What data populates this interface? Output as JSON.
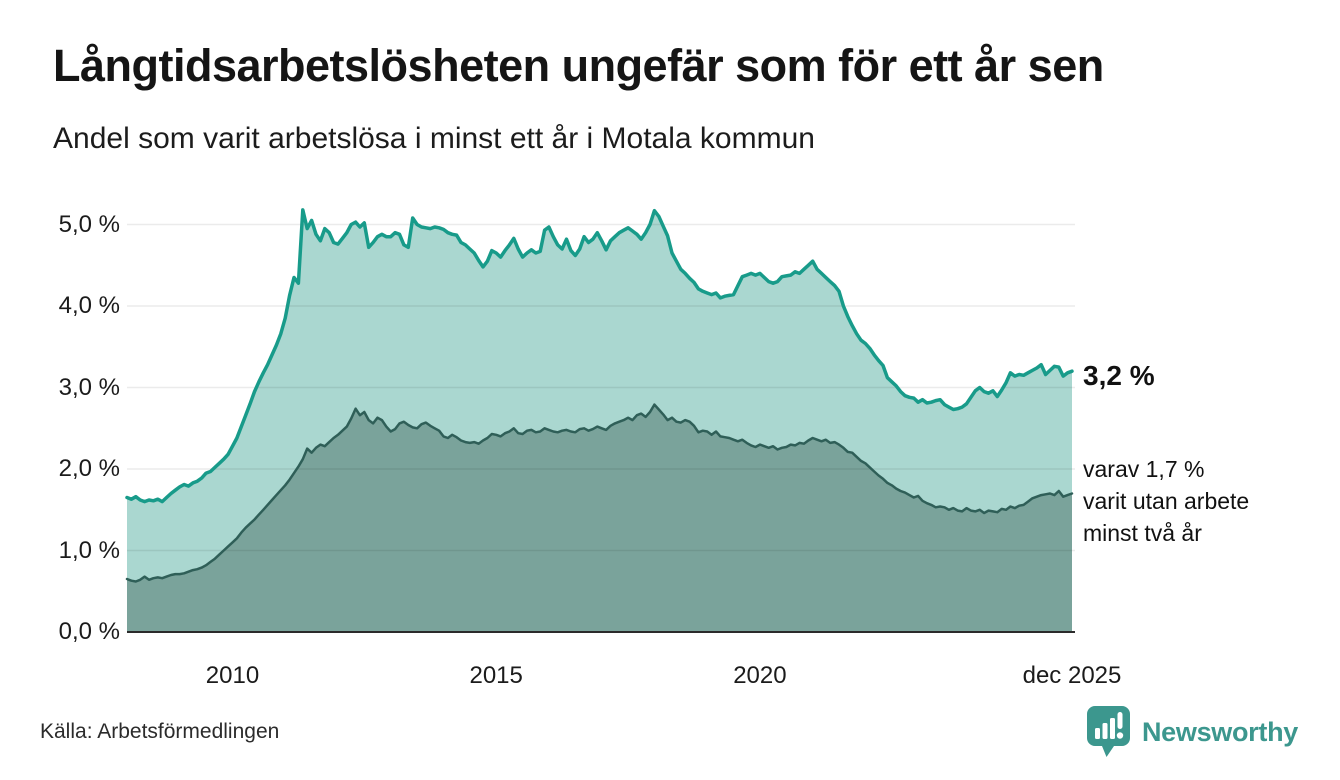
{
  "header": {
    "title": "Långtidsarbetslösheten ungefär som för ett år sen",
    "subtitle": "Andel som varit arbetslösa i minst ett år i Motala kommun"
  },
  "end_labels": {
    "total": "3,2 %",
    "two_year_line1": "varav 1,7 %",
    "two_year_line2": "varit utan arbete",
    "two_year_line3": "minst två år"
  },
  "footer": {
    "source": "Källa: Arbetsförmedlingen",
    "brand": "Newsworthy"
  },
  "colors": {
    "series1_line": "#189b8a",
    "series1_fill": "#aad7d0",
    "series2_line": "#2f5f58",
    "series2_fill": "#7aa39b",
    "gridline": "rgba(0,0,0,0.08)",
    "baseline": "#2b2b2b",
    "brand_teal": "#3c978e"
  },
  "chart_data": {
    "type": "area",
    "title": "Långtidsarbetslösheten ungefär som för ett år sen",
    "subtitle": "Andel som varit arbetslösa i minst ett år i Motala kommun",
    "xlabel": "",
    "ylabel": "",
    "grid": true,
    "legend": "none",
    "xlim": [
      2008,
      2025.917
    ],
    "ylim": [
      0,
      5.35
    ],
    "x_start_year": 2008,
    "points_per_year": 12,
    "y_ticks": [
      {
        "value": 5.0,
        "label": "5,0 %"
      },
      {
        "value": 4.0,
        "label": "4,0 %"
      },
      {
        "value": 3.0,
        "label": "3,0 %"
      },
      {
        "value": 2.0,
        "label": "2,0 %"
      },
      {
        "value": 1.0,
        "label": "1,0 %"
      },
      {
        "value": 0.0,
        "label": "0,0 %"
      }
    ],
    "x_ticks": [
      {
        "value": 2010,
        "label": "2010"
      },
      {
        "value": 2015,
        "label": "2015"
      },
      {
        "value": 2020,
        "label": "2020"
      },
      {
        "value": 2025.917,
        "label": "dec 2025"
      }
    ],
    "series": [
      {
        "name": "Andel som varit arbetslösa minst ett år",
        "end_value_label": "3,2 %",
        "values": [
          1.65,
          1.63,
          1.66,
          1.62,
          1.6,
          1.62,
          1.61,
          1.63,
          1.6,
          1.65,
          1.7,
          1.74,
          1.78,
          1.81,
          1.79,
          1.83,
          1.85,
          1.89,
          1.95,
          1.97,
          2.02,
          2.07,
          2.12,
          2.18,
          2.28,
          2.38,
          2.52,
          2.66,
          2.8,
          2.95,
          3.07,
          3.18,
          3.28,
          3.4,
          3.52,
          3.66,
          3.85,
          4.13,
          4.35,
          4.28,
          5.18,
          4.95,
          5.05,
          4.88,
          4.8,
          4.95,
          4.9,
          4.78,
          4.76,
          4.83,
          4.9,
          5.0,
          5.03,
          4.97,
          5.02,
          4.72,
          4.78,
          4.85,
          4.88,
          4.85,
          4.85,
          4.9,
          4.88,
          4.75,
          4.72,
          5.08,
          5.0,
          4.97,
          4.96,
          4.95,
          4.97,
          4.96,
          4.94,
          4.9,
          4.88,
          4.87,
          4.78,
          4.75,
          4.7,
          4.65,
          4.56,
          4.48,
          4.55,
          4.68,
          4.65,
          4.6,
          4.68,
          4.75,
          4.83,
          4.7,
          4.6,
          4.65,
          4.69,
          4.65,
          4.67,
          4.93,
          4.97,
          4.85,
          4.75,
          4.7,
          4.82,
          4.68,
          4.62,
          4.7,
          4.85,
          4.78,
          4.82,
          4.9,
          4.8,
          4.69,
          4.8,
          4.85,
          4.9,
          4.93,
          4.96,
          4.92,
          4.88,
          4.82,
          4.9,
          5.0,
          5.17,
          5.1,
          4.98,
          4.86,
          4.65,
          4.55,
          4.45,
          4.4,
          4.34,
          4.29,
          4.21,
          4.18,
          4.16,
          4.14,
          4.16,
          4.1,
          4.12,
          4.13,
          4.14,
          4.25,
          4.36,
          4.38,
          4.4,
          4.38,
          4.4,
          4.35,
          4.3,
          4.28,
          4.3,
          4.36,
          4.37,
          4.38,
          4.42,
          4.4,
          4.45,
          4.5,
          4.55,
          4.45,
          4.4,
          4.35,
          4.3,
          4.25,
          4.18,
          4.0,
          3.87,
          3.76,
          3.66,
          3.58,
          3.54,
          3.48,
          3.4,
          3.33,
          3.27,
          3.12,
          3.07,
          3.02,
          2.95,
          2.9,
          2.88,
          2.87,
          2.82,
          2.85,
          2.81,
          2.82,
          2.84,
          2.85,
          2.79,
          2.76,
          2.73,
          2.74,
          2.76,
          2.8,
          2.88,
          2.96,
          3.0,
          2.95,
          2.93,
          2.96,
          2.89,
          2.97,
          3.06,
          3.18,
          3.14,
          3.16,
          3.15,
          3.18,
          3.21,
          3.24,
          3.28,
          3.16,
          3.21,
          3.26,
          3.25,
          3.14,
          3.18,
          3.2
        ]
      },
      {
        "name": "varav utan arbete minst två år",
        "end_value_label": "1,7 %",
        "values": [
          0.65,
          0.63,
          0.62,
          0.64,
          0.68,
          0.64,
          0.66,
          0.67,
          0.66,
          0.68,
          0.7,
          0.71,
          0.71,
          0.72,
          0.74,
          0.76,
          0.77,
          0.79,
          0.82,
          0.86,
          0.9,
          0.95,
          1.0,
          1.05,
          1.1,
          1.15,
          1.22,
          1.28,
          1.33,
          1.38,
          1.44,
          1.5,
          1.56,
          1.62,
          1.68,
          1.74,
          1.8,
          1.87,
          1.95,
          2.03,
          2.12,
          2.25,
          2.2,
          2.26,
          2.3,
          2.28,
          2.33,
          2.38,
          2.42,
          2.47,
          2.52,
          2.62,
          2.74,
          2.66,
          2.7,
          2.6,
          2.56,
          2.63,
          2.6,
          2.52,
          2.46,
          2.49,
          2.56,
          2.58,
          2.54,
          2.51,
          2.5,
          2.55,
          2.57,
          2.53,
          2.5,
          2.47,
          2.4,
          2.38,
          2.42,
          2.39,
          2.35,
          2.33,
          2.32,
          2.33,
          2.31,
          2.35,
          2.38,
          2.43,
          2.42,
          2.4,
          2.44,
          2.46,
          2.5,
          2.44,
          2.43,
          2.47,
          2.48,
          2.45,
          2.46,
          2.5,
          2.48,
          2.46,
          2.45,
          2.47,
          2.48,
          2.46,
          2.45,
          2.49,
          2.5,
          2.47,
          2.49,
          2.52,
          2.5,
          2.48,
          2.53,
          2.56,
          2.58,
          2.6,
          2.63,
          2.6,
          2.66,
          2.68,
          2.64,
          2.7,
          2.79,
          2.73,
          2.67,
          2.6,
          2.63,
          2.58,
          2.57,
          2.6,
          2.58,
          2.53,
          2.45,
          2.47,
          2.46,
          2.42,
          2.46,
          2.4,
          2.39,
          2.38,
          2.36,
          2.34,
          2.36,
          2.32,
          2.29,
          2.27,
          2.3,
          2.28,
          2.26,
          2.28,
          2.24,
          2.26,
          2.27,
          2.3,
          2.29,
          2.32,
          2.31,
          2.35,
          2.38,
          2.36,
          2.34,
          2.36,
          2.32,
          2.33,
          2.3,
          2.26,
          2.21,
          2.2,
          2.15,
          2.1,
          2.07,
          2.02,
          1.97,
          1.92,
          1.88,
          1.83,
          1.8,
          1.76,
          1.73,
          1.71,
          1.68,
          1.65,
          1.67,
          1.61,
          1.58,
          1.56,
          1.53,
          1.54,
          1.53,
          1.5,
          1.52,
          1.49,
          1.48,
          1.52,
          1.49,
          1.48,
          1.5,
          1.46,
          1.49,
          1.48,
          1.47,
          1.51,
          1.5,
          1.54,
          1.52,
          1.55,
          1.56,
          1.6,
          1.64,
          1.66,
          1.68,
          1.69,
          1.7,
          1.68,
          1.73,
          1.66,
          1.68,
          1.7
        ]
      }
    ],
    "annotations": [
      {
        "text": "3,2 %",
        "bold": true,
        "attached_to": "series 1 end"
      },
      {
        "text": "varav 1,7 % varit utan arbete minst två år",
        "attached_to": "series 2 end"
      }
    ],
    "source": "Källa: Arbetsförmedlingen"
  }
}
